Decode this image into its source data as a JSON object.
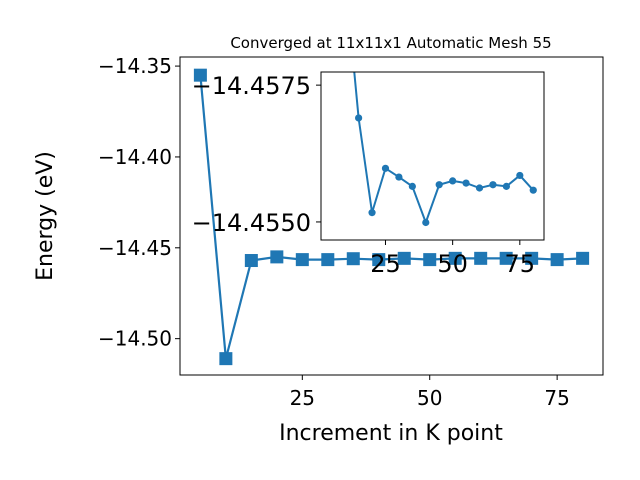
{
  "chart_data": [
    {
      "id": "main",
      "type": "line",
      "title": "Converged at 11x11x1 Automatic Mesh 55",
      "xlabel": "Increment in K point",
      "ylabel": "Energy (eV)",
      "xlim": [
        1,
        84
      ],
      "ylim": [
        -14.52,
        -14.345
      ],
      "xticks": [
        25,
        50,
        75
      ],
      "yticks": [
        -14.35,
        -14.4,
        -14.45,
        -14.5
      ],
      "ytick_labels": [
        "−14.35",
        "−14.40",
        "−14.45",
        "−14.50"
      ],
      "grid": false,
      "marker": "square",
      "color": "#1f77b4",
      "series": [
        {
          "x": [
            5,
            10,
            15,
            20,
            25,
            30,
            35,
            40,
            45,
            50,
            55,
            60,
            65,
            70,
            75,
            80
          ],
          "y": [
            -14.355,
            -14.511,
            -14.457,
            -14.455,
            -14.4565,
            -14.4565,
            -14.456,
            -14.4565,
            -14.4558,
            -14.4565,
            -14.4558,
            -14.4558,
            -14.4558,
            -14.4558,
            -14.4565,
            -14.4558
          ]
        }
      ]
    },
    {
      "id": "inset",
      "type": "line",
      "xlim": [
        1,
        84
      ],
      "ylim": [
        -14.45467,
        -14.45774
      ],
      "xticks": [
        25,
        50,
        75
      ],
      "yticks": [
        -14.4575,
        -14.455
      ],
      "ytick_labels": [
        "−14.4575",
        "−14.4550"
      ],
      "grid": false,
      "marker": "circle",
      "color": "#1f77b4",
      "series": [
        {
          "x": [
            10,
            15,
            20,
            25,
            30,
            35,
            40,
            45,
            50,
            55,
            60,
            65,
            70,
            75,
            80
          ],
          "y": [
            -14.4595,
            -14.4569,
            -14.45517,
            -14.45598,
            -14.45582,
            -14.45565,
            -14.45499,
            -14.45568,
            -14.45575,
            -14.45571,
            -14.45562,
            -14.45568,
            -14.45565,
            -14.45585,
            -14.45558
          ]
        }
      ]
    }
  ]
}
